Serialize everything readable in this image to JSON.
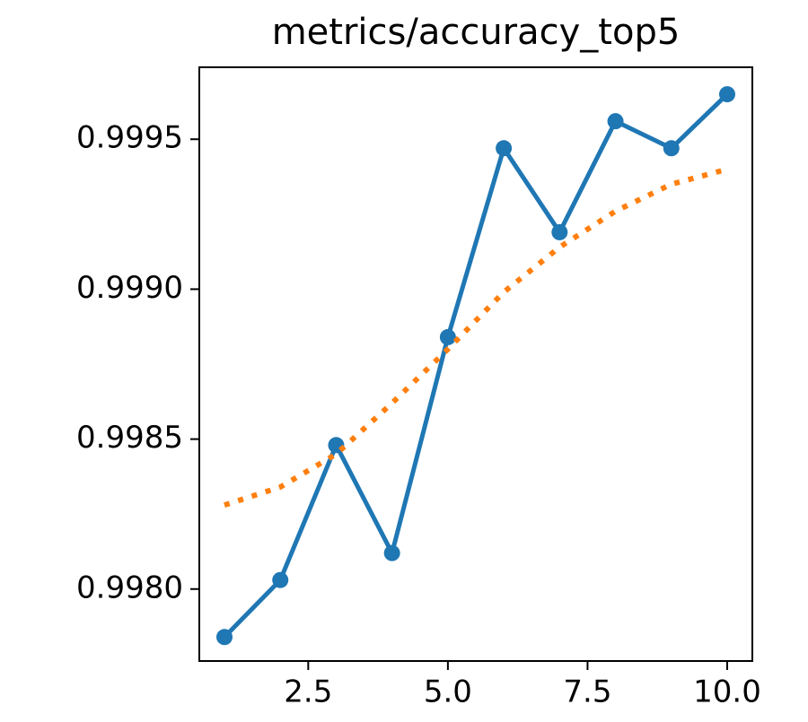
{
  "chart_data": {
    "type": "line",
    "title": "metrics/accuracy_top5",
    "x": [
      1,
      2,
      3,
      4,
      5,
      6,
      7,
      8,
      9,
      10
    ],
    "series": [
      {
        "color": "#1f77b4",
        "style": "solid",
        "markers": true,
        "values": [
          0.99784,
          0.99803,
          0.99848,
          0.99812,
          0.99884,
          0.99947,
          0.99919,
          0.99956,
          0.99947,
          0.99965
        ]
      },
      {
        "color": "#ff7f0e",
        "style": "dotted",
        "markers": false,
        "values": [
          0.99828,
          0.99834,
          0.99845,
          0.99862,
          0.9988,
          0.99899,
          0.99914,
          0.99926,
          0.99935,
          0.9994
        ]
      }
    ],
    "xlim": [
      0.55,
      10.45
    ],
    "xticks": [
      2.5,
      {
        "value": 5,
        "label": "5.0"
      },
      7.5,
      {
        "value": 10,
        "label": "10.0"
      }
    ],
    "ylim": [
      0.99776,
      0.99974
    ],
    "yticks": [
      {
        "value": 0.998,
        "label": "0.9980"
      },
      0.9985,
      {
        "value": 0.999,
        "label": "0.9990"
      },
      0.9995
    ],
    "grid": false
  }
}
